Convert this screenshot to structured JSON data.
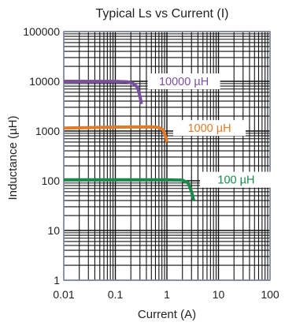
{
  "chart_data": {
    "type": "line",
    "title": "Typical Ls vs Current (I)",
    "xlabel": "Current (A)",
    "ylabel": "Inductance (µH)",
    "x_scale": "log",
    "y_scale": "log",
    "xlim": [
      0.01,
      100
    ],
    "ylim": [
      1,
      100000
    ],
    "grid": true,
    "x_ticks": [
      "0.01",
      "0.1",
      "1",
      "10",
      "100"
    ],
    "y_ticks": [
      "1",
      "10",
      "100",
      "1000",
      "10000",
      "100000"
    ],
    "series": [
      {
        "name": "10000 µH",
        "color": "#7b4fa0",
        "points": [
          [
            0.01,
            10000
          ],
          [
            0.1,
            9950
          ],
          [
            0.17,
            9800
          ],
          [
            0.22,
            9100
          ],
          [
            0.27,
            7500
          ],
          [
            0.3,
            5000
          ],
          [
            0.32,
            3500
          ]
        ]
      },
      {
        "name": "1000 µH",
        "color": "#e07b2a",
        "points": [
          [
            0.01,
            1150
          ],
          [
            0.1,
            1200
          ],
          [
            0.5,
            1210
          ],
          [
            0.7,
            1180
          ],
          [
            0.85,
            1050
          ],
          [
            0.95,
            750
          ],
          [
            1.0,
            600
          ]
        ]
      },
      {
        "name": "100 µH",
        "color": "#1a8a4a",
        "points": [
          [
            0.01,
            105
          ],
          [
            0.1,
            105
          ],
          [
            1.0,
            105
          ],
          [
            2.0,
            103
          ],
          [
            2.6,
            90
          ],
          [
            3.0,
            60
          ],
          [
            3.3,
            40
          ]
        ]
      }
    ]
  }
}
